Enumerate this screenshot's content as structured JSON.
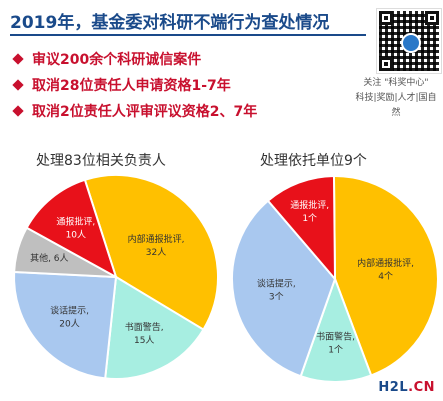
{
  "header": {
    "title": "2019年，基金委对科研不端行为查处情况",
    "bullets": [
      "审议200余个科研诚信案件",
      "取消28位责任人申请资格1-7年",
      "取消2位责任人评审评议资格2、7年"
    ]
  },
  "sidebar": {
    "follow_line1": "关注 \"科奖中心\"",
    "follow_line2": "科技|奖励|人才|国自然"
  },
  "colors": {
    "red": "#e8111a",
    "gray": "#bfbfbf",
    "yellow": "#ffc000",
    "teal": "#a7eee1",
    "blue": "#a9c8ef"
  },
  "watermark": {
    "part1": "H2L",
    "part2": ".CN"
  },
  "chart_data": [
    {
      "type": "pie",
      "title": "处理83位相关负责人",
      "slices": [
        {
          "label": "内部通报批评,",
          "value_label": "32人",
          "value": 32,
          "color": "#ffc000"
        },
        {
          "label": "书面警告,",
          "value_label": "15人",
          "value": 15,
          "color": "#a7eee1"
        },
        {
          "label": "谈话提示,",
          "value_label": "20人",
          "value": 20,
          "color": "#a9c8ef"
        },
        {
          "label": "其他, 6人",
          "value_label": "",
          "value": 6,
          "color": "#bfbfbf"
        },
        {
          "label": "通报批评,",
          "value_label": "10人",
          "value": 10,
          "color": "#e8111a"
        }
      ]
    },
    {
      "type": "pie",
      "title": "处理依托单位9个",
      "slices": [
        {
          "label": "内部通报批评,",
          "value_label": "4个",
          "value": 4,
          "color": "#ffc000"
        },
        {
          "label": "书面警告,",
          "value_label": "1个",
          "value": 1,
          "color": "#a7eee1"
        },
        {
          "label": "谈话提示,",
          "value_label": "3个",
          "value": 3,
          "color": "#a9c8ef"
        },
        {
          "label": "通报批评,",
          "value_label": "1个",
          "value": 1,
          "color": "#e8111a"
        }
      ]
    }
  ]
}
